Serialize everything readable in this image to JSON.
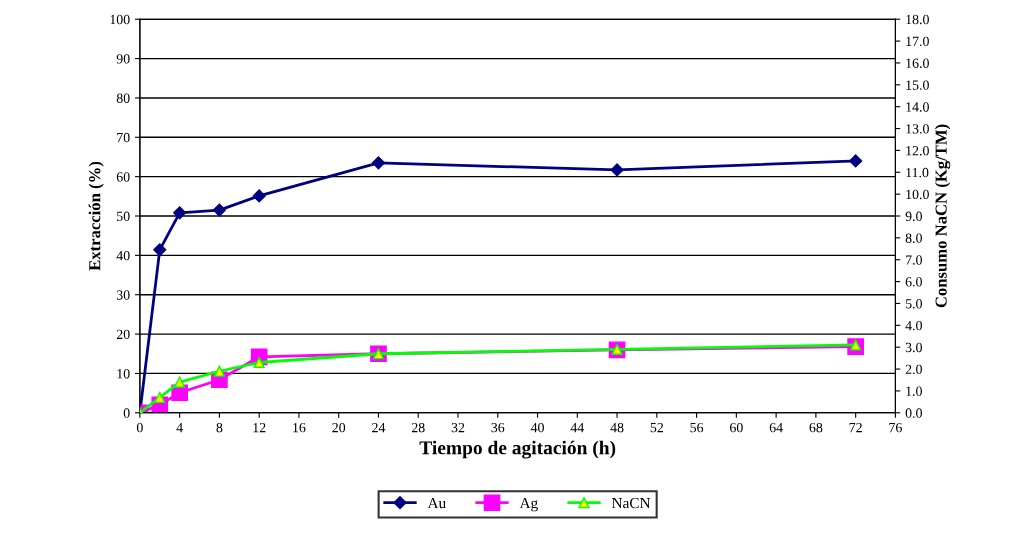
{
  "chart_data": {
    "type": "line",
    "xlabel": "Tiempo de agitación (h)",
    "ylabel": "Extracción (%)",
    "y2label": "Consumo NaCN (Kg/TM)",
    "xlim": [
      0,
      76
    ],
    "xticks": [
      0,
      4,
      8,
      12,
      16,
      20,
      24,
      28,
      32,
      36,
      40,
      44,
      48,
      52,
      56,
      60,
      64,
      68,
      72,
      76
    ],
    "ylim": [
      0,
      100
    ],
    "yticks": [
      0,
      10,
      20,
      30,
      40,
      50,
      60,
      70,
      80,
      90,
      100
    ],
    "y2lim": [
      0,
      18
    ],
    "y2ticks": [
      {
        "value": 0,
        "label": "0.0"
      },
      {
        "value": 1,
        "label": "1.0"
      },
      {
        "value": 2,
        "label": "2.0"
      },
      {
        "value": 3,
        "label": "3.0"
      },
      {
        "value": 4,
        "label": "4.0"
      },
      {
        "value": 5,
        "label": "5.0"
      },
      {
        "value": 6,
        "label": "6.0"
      },
      {
        "value": 7,
        "label": "7.0"
      },
      {
        "value": 8,
        "label": "8.0"
      },
      {
        "value": 9,
        "label": "9.0"
      },
      {
        "value": 10,
        "label": "10.0"
      },
      {
        "value": 11,
        "label": "11.0"
      },
      {
        "value": 12,
        "label": "12.0"
      },
      {
        "value": 13,
        "label": "13.0"
      },
      {
        "value": 14,
        "label": "14.0"
      },
      {
        "value": 15,
        "label": "15.0"
      },
      {
        "value": 16,
        "label": "16.0"
      },
      {
        "value": 17,
        "label": "17.0"
      },
      {
        "value": 18,
        "label": "18.0"
      }
    ],
    "x": [
      0,
      2,
      4,
      8,
      12,
      24,
      48,
      72
    ],
    "grid": "y",
    "legend": "bottom",
    "series": [
      {
        "name": "Au",
        "color": "#000080",
        "marker": "diamond",
        "values": [
          0,
          41.4,
          50.8,
          51.5,
          55.1,
          63.5,
          61.7,
          64.0
        ]
      },
      {
        "name": "Ag",
        "color": "#ff00ff",
        "marker": "square",
        "values": [
          0,
          2.0,
          5.1,
          8.4,
          14.2,
          15.0,
          16.0,
          16.8
        ]
      },
      {
        "name": "NaCN",
        "color": "#00ff00",
        "marker": "triangle",
        "axis": "y2",
        "values": [
          0,
          0.7,
          1.4,
          1.9,
          2.3,
          2.7,
          2.9,
          3.1
        ]
      }
    ]
  }
}
